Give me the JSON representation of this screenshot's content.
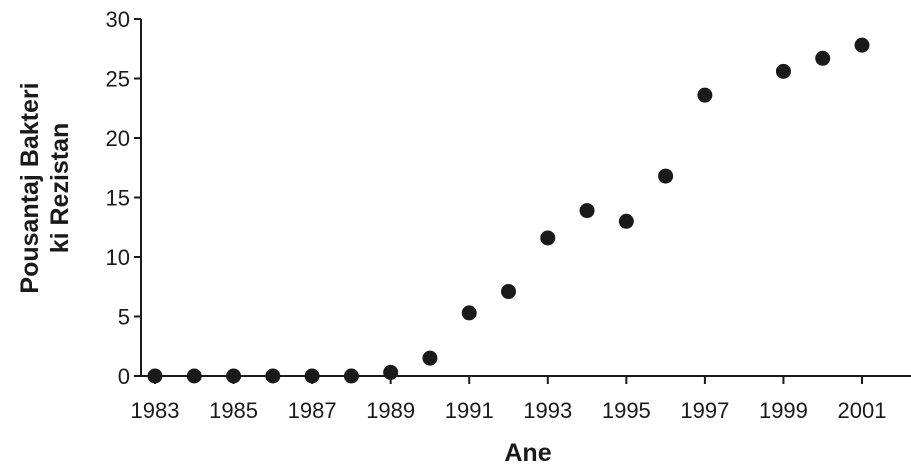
{
  "chart_data": {
    "type": "scatter",
    "title": "",
    "xlabel": "Ane",
    "ylabel_lines": [
      "Pousantaj Bakteri",
      "ki Rezistan"
    ],
    "xlim": [
      1983,
      2002
    ],
    "ylim": [
      0,
      30
    ],
    "xticks": [
      1983,
      1985,
      1987,
      1989,
      1991,
      1993,
      1995,
      1997,
      1999,
      2001
    ],
    "xtick_labels": [
      "1983",
      "1985",
      "1987",
      "1989",
      "1991",
      "1993",
      "1995",
      "1997",
      "1999",
      "2001"
    ],
    "yticks": [
      0,
      5,
      10,
      15,
      20,
      25,
      30
    ],
    "ytick_labels": [
      "0",
      "5",
      "10",
      "15",
      "20",
      "25",
      "30"
    ],
    "grid": false,
    "legend": "none",
    "marker_color": "#1a1a1a",
    "points": [
      {
        "x": 1983,
        "y": 0
      },
      {
        "x": 1984,
        "y": 0
      },
      {
        "x": 1985,
        "y": 0
      },
      {
        "x": 1986,
        "y": 0
      },
      {
        "x": 1987,
        "y": 0
      },
      {
        "x": 1988,
        "y": 0
      },
      {
        "x": 1989,
        "y": 0.3
      },
      {
        "x": 1990,
        "y": 1.5
      },
      {
        "x": 1991,
        "y": 5.3
      },
      {
        "x": 1992,
        "y": 7.1
      },
      {
        "x": 1993,
        "y": 11.6
      },
      {
        "x": 1994,
        "y": 13.9
      },
      {
        "x": 1995,
        "y": 13.0
      },
      {
        "x": 1996,
        "y": 16.8
      },
      {
        "x": 1997,
        "y": 23.6
      },
      {
        "x": 1999,
        "y": 25.6
      },
      {
        "x": 2000,
        "y": 26.7
      },
      {
        "x": 2001,
        "y": 27.8
      }
    ]
  }
}
